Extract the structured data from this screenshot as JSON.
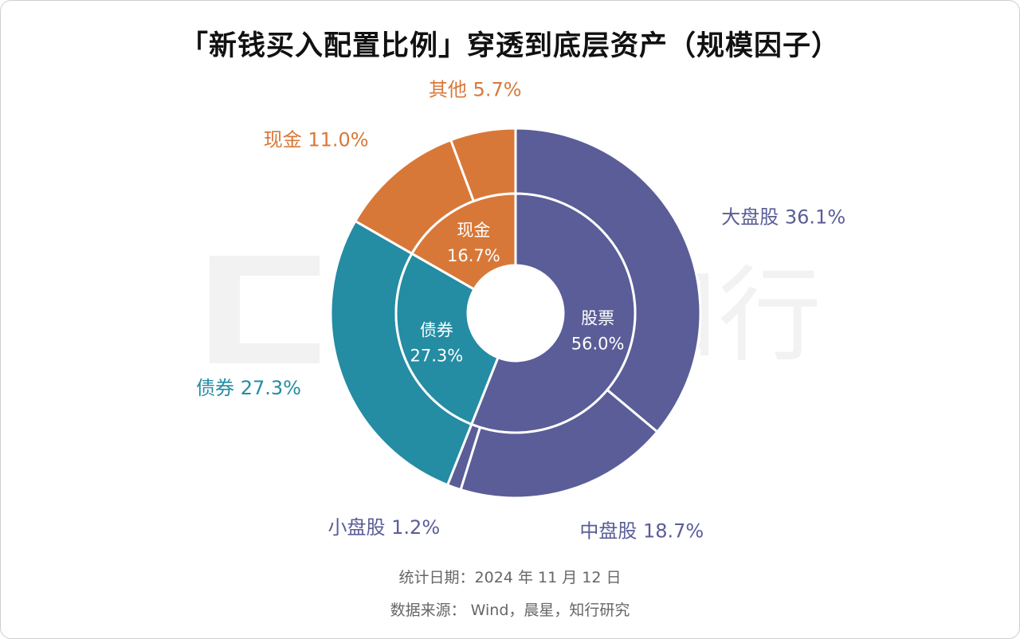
{
  "title": "「新钱买入配置比例」穿透到底层资产（规模因子）",
  "footer": {
    "date": "统计日期：2024 年 11 月 12 日",
    "source": "数据来源： Wind，晨星，知行研究"
  },
  "watermark": "知行",
  "colors": {
    "stock": "#5a5d97",
    "bond": "#248ca3",
    "cash": "#d87838",
    "separator": "#ffffff",
    "watermark": "#f2f2f2"
  },
  "chart_data": {
    "type": "donut",
    "inner": [
      {
        "name": "股票",
        "value": 56.0,
        "label": "56.0%",
        "color_key": "stock"
      },
      {
        "name": "债券",
        "value": 27.3,
        "label": "27.3%",
        "color_key": "bond"
      },
      {
        "name": "现金",
        "value": 16.7,
        "label": "16.7%",
        "color_key": "cash"
      }
    ],
    "outer": [
      {
        "name": "大盘股",
        "value": 36.1,
        "label": "大盘股 36.1%",
        "color_key": "stock"
      },
      {
        "name": "中盘股",
        "value": 18.7,
        "label": "中盘股 18.7%",
        "color_key": "stock"
      },
      {
        "name": "小盘股",
        "value": 1.2,
        "label": "小盘股 1.2%",
        "color_key": "stock"
      },
      {
        "name": "债券",
        "value": 27.3,
        "label": "债券 27.3%",
        "color_key": "bond"
      },
      {
        "name": "现金",
        "value": 11.0,
        "label": "现金 11.0%",
        "color_key": "cash"
      },
      {
        "name": "其他",
        "value": 5.7,
        "label": "其他 5.7%",
        "color_key": "cash"
      }
    ]
  }
}
